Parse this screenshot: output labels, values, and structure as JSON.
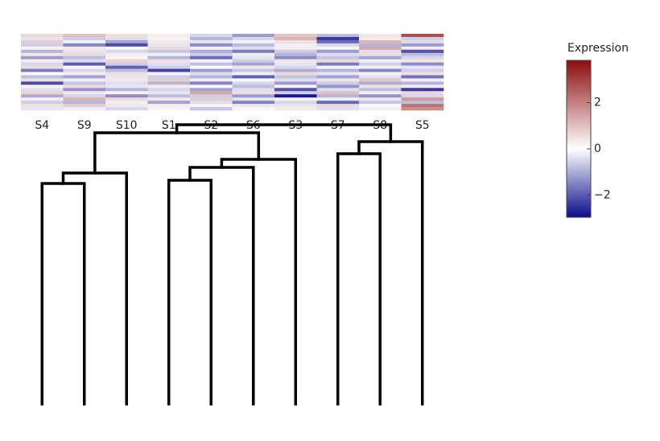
{
  "chart_data": {
    "type": "heatmap",
    "categories": [
      "S4",
      "S9",
      "S10",
      "S1",
      "S2",
      "S6",
      "S3",
      "S7",
      "S8",
      "S5"
    ],
    "z": [
      [
        0.6,
        1.0,
        0.5,
        0.3,
        -0.5,
        -1.2,
        0.9,
        -0.8,
        0.4,
        2.8
      ],
      [
        -0.3,
        -0.6,
        -0.4,
        0.2,
        -0.9,
        -0.5,
        1.2,
        -2.4,
        0.3,
        -0.6
      ],
      [
        0.8,
        -0.2,
        -1.1,
        0.4,
        -0.3,
        0.2,
        0.5,
        -1.8,
        1.2,
        -0.4
      ],
      [
        -0.6,
        -1.5,
        -2.2,
        -0.3,
        -1.4,
        -0.8,
        -0.2,
        -0.5,
        -0.9,
        -1.2
      ],
      [
        0.2,
        0.4,
        0.1,
        0.6,
        -0.2,
        -0.4,
        0.3,
        0.2,
        1.4,
        0.3
      ],
      [
        -0.9,
        -0.3,
        -0.5,
        -0.7,
        -1.0,
        -1.6,
        -0.6,
        -1.2,
        -0.4,
        -2.1
      ],
      [
        0.4,
        0.6,
        0.3,
        -0.2,
        -0.6,
        0.3,
        -0.9,
        -0.4,
        0.5,
        -0.8
      ],
      [
        -1.2,
        -0.8,
        0.2,
        -0.9,
        -1.8,
        -0.3,
        -1.4,
        -0.7,
        -1.1,
        -0.5
      ],
      [
        0.3,
        -0.4,
        0.7,
        0.5,
        0.2,
        -0.6,
        0.4,
        0.6,
        -0.2,
        0.4
      ],
      [
        -0.5,
        -2.0,
        -0.6,
        -0.4,
        -0.8,
        -1.1,
        -0.3,
        -1.6,
        -0.6,
        -1.4
      ],
      [
        0.6,
        0.2,
        -1.9,
        -0.6,
        0.1,
        0.4,
        -0.5,
        0.2,
        0.3,
        -0.3
      ],
      [
        -1.6,
        -0.5,
        -0.8,
        -2.3,
        -1.2,
        -0.7,
        -1.0,
        -0.9,
        -1.5,
        -0.6
      ],
      [
        0.1,
        0.3,
        0.5,
        0.2,
        -0.4,
        -0.2,
        0.6,
        -0.3,
        0.2,
        0.5
      ],
      [
        -0.8,
        -1.1,
        -0.3,
        -0.6,
        -0.9,
        -1.9,
        -0.7,
        -1.1,
        -0.4,
        -1.7
      ],
      [
        0.5,
        -0.2,
        0.4,
        0.8,
        0.3,
        0.1,
        -0.4,
        0.4,
        0.9,
        -0.2
      ],
      [
        -2.2,
        -0.7,
        -0.4,
        -0.9,
        -1.5,
        -0.5,
        -1.2,
        -0.6,
        -1.0,
        -0.9
      ],
      [
        0.2,
        0.6,
        -0.3,
        0.3,
        -0.1,
        -0.8,
        0.2,
        -1.3,
        0.5,
        0.3
      ],
      [
        -0.4,
        -1.3,
        -0.9,
        -0.5,
        -1.1,
        -0.4,
        -2.1,
        -0.4,
        -0.8,
        -2.4
      ],
      [
        0.7,
        0.4,
        0.2,
        -0.3,
        1.4,
        0.5,
        -0.6,
        1.0,
        -0.2,
        0.6
      ],
      [
        -1.0,
        -0.5,
        -1.4,
        -0.8,
        -0.6,
        -1.2,
        -2.8,
        -0.9,
        -1.3,
        -0.5
      ],
      [
        0.3,
        1.2,
        0.6,
        0.4,
        0.8,
        -0.3,
        0.2,
        -0.2,
        0.4,
        1.6
      ],
      [
        -0.6,
        -0.9,
        -0.2,
        -1.1,
        -0.4,
        -1.5,
        -0.5,
        -1.8,
        -0.7,
        -0.8
      ],
      [
        0.5,
        0.8,
        0.4,
        0.3,
        0.2,
        0.4,
        -0.3,
        0.6,
        0.1,
        2.2
      ],
      [
        -0.3,
        -0.2,
        -0.5,
        0.2,
        -0.7,
        -0.1,
        0.3,
        -0.4,
        -0.2,
        1.8
      ]
    ],
    "zlim": [
      -2.96,
      3.83
    ],
    "colorscale": [
      "#0b0b8c",
      "#ffffff",
      "#8b0d0d"
    ],
    "colorbar_title": "Expression",
    "colorbar_ticks": [
      {
        "value": -2,
        "label": "−2"
      },
      0,
      2
    ],
    "dendrogram": [
      {
        "children": [
          0,
          1
        ],
        "height": 27.4
      },
      {
        "children": [
          10,
          2
        ],
        "height": 28.7
      },
      {
        "children": [
          3,
          4
        ],
        "height": 27.8
      },
      {
        "children": [
          12,
          5
        ],
        "height": 29.4
      },
      {
        "children": [
          13,
          6
        ],
        "height": 30.4
      },
      {
        "children": [
          11,
          14
        ],
        "height": 33.7
      },
      {
        "children": [
          7,
          8
        ],
        "height": 31.1
      },
      {
        "children": [
          16,
          9
        ],
        "height": 32.6
      },
      {
        "children": [
          15,
          17
        ],
        "height": 34.7
      }
    ],
    "dendrogram_color": "#000000"
  }
}
